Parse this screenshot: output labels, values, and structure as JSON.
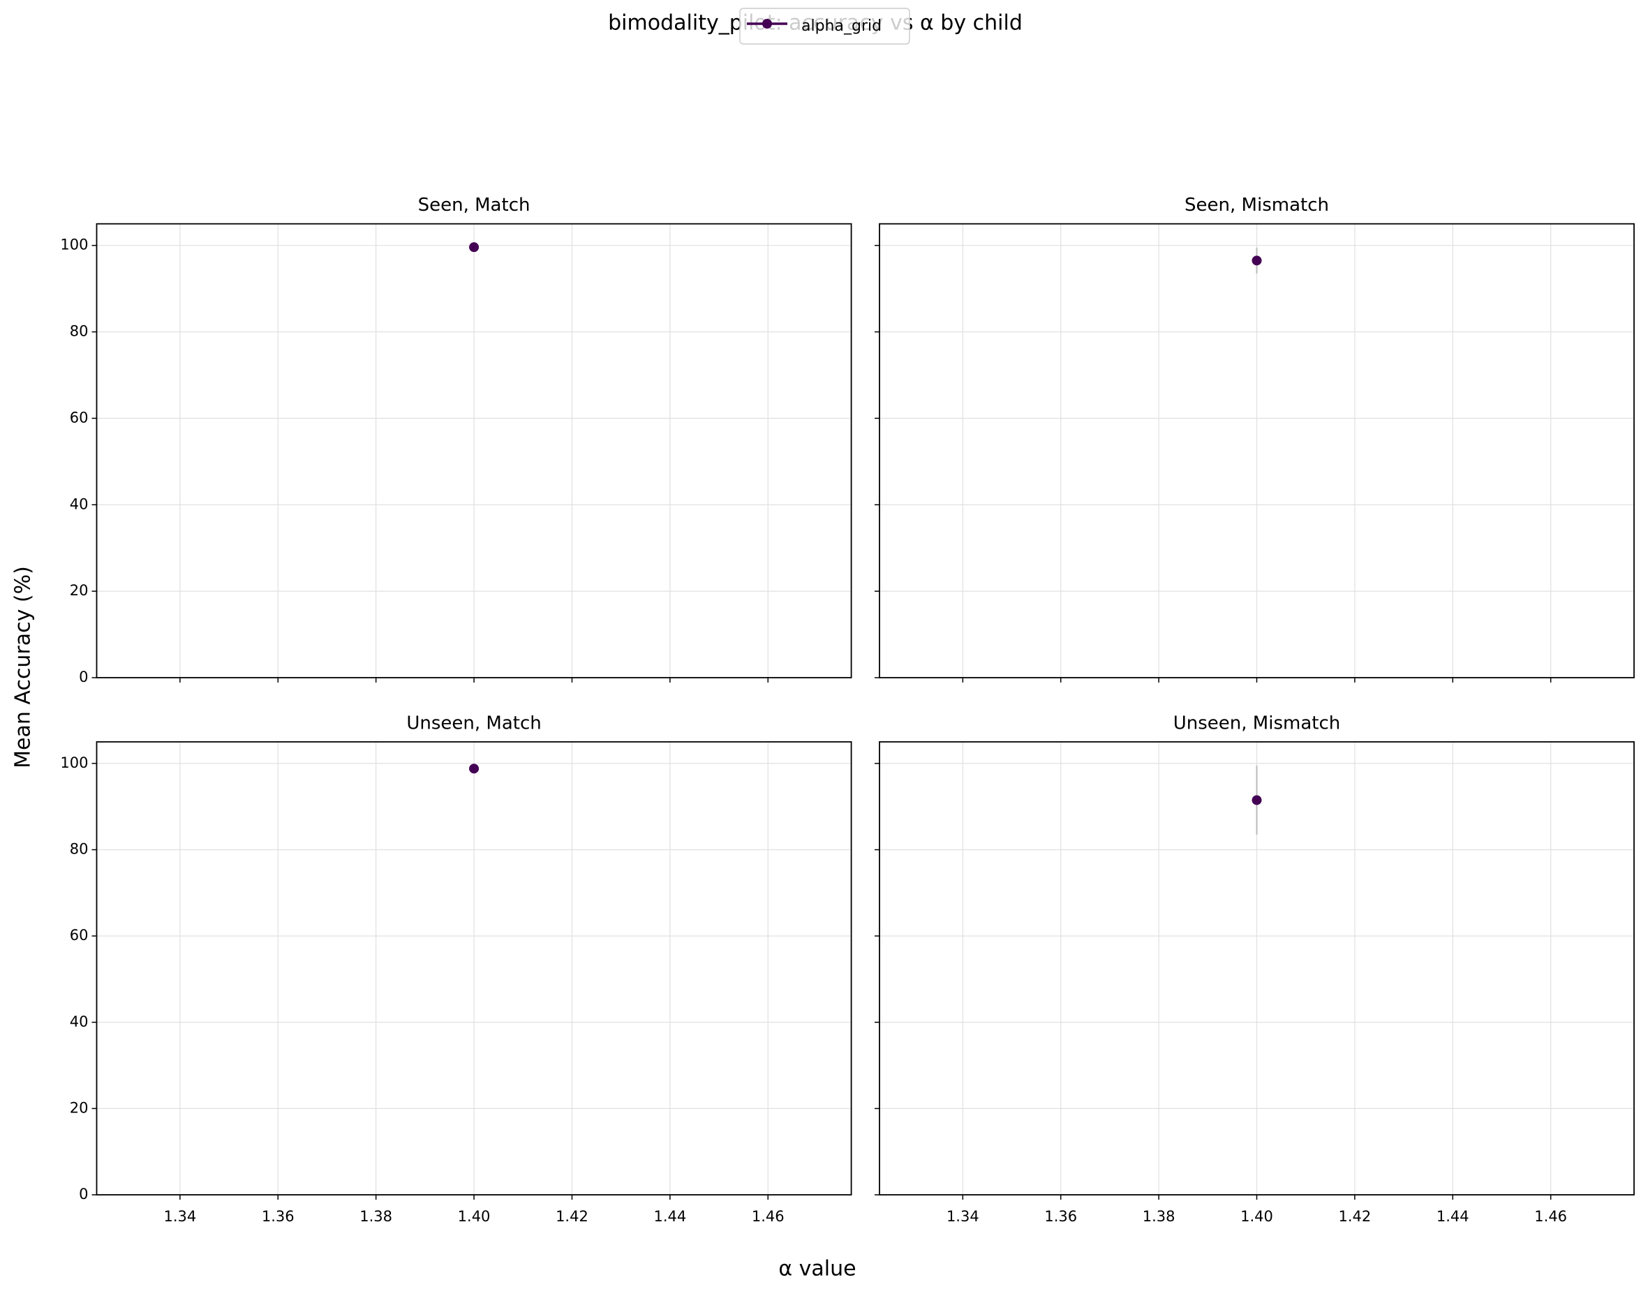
{
  "title": "bimodality_pilot: accuracy vs α by child",
  "x_label": "α value",
  "y_label": "Mean Accuracy (%)",
  "chart_data": [
    {
      "type": "line",
      "title": "Seen, Match",
      "x": [
        1.4
      ],
      "series": [
        {
          "name": "alpha_grid",
          "color": "#440154",
          "values": [
            99.6
          ],
          "errors": [
            0.5
          ]
        }
      ],
      "xlim": [
        1.323,
        1.477
      ],
      "ylim": [
        0,
        105
      ],
      "xticks": [
        {
          "value": 1.34,
          "label": "1.34"
        },
        {
          "value": 1.36,
          "label": "1.36"
        },
        {
          "value": 1.38,
          "label": "1.38"
        },
        {
          "value": 1.4,
          "label": "1.40"
        },
        {
          "value": 1.42,
          "label": "1.42"
        },
        {
          "value": 1.44,
          "label": "1.44"
        },
        {
          "value": 1.46,
          "label": "1.46"
        }
      ],
      "yticks": [
        0,
        20,
        40,
        60,
        80,
        100
      ],
      "grid": true
    },
    {
      "type": "line",
      "title": "Seen, Mismatch",
      "x": [
        1.4
      ],
      "series": [
        {
          "name": "alpha_grid",
          "color": "#440154",
          "values": [
            96.5
          ],
          "errors": [
            3
          ]
        }
      ],
      "xlim": [
        1.323,
        1.477
      ],
      "ylim": [
        0,
        105
      ],
      "xticks": [
        {
          "value": 1.34,
          "label": "1.34"
        },
        {
          "value": 1.36,
          "label": "1.36"
        },
        {
          "value": 1.38,
          "label": "1.38"
        },
        {
          "value": 1.4,
          "label": "1.40"
        },
        {
          "value": 1.42,
          "label": "1.42"
        },
        {
          "value": 1.44,
          "label": "1.44"
        },
        {
          "value": 1.46,
          "label": "1.46"
        }
      ],
      "yticks": [
        0,
        20,
        40,
        60,
        80,
        100
      ],
      "grid": true
    },
    {
      "type": "line",
      "title": "Unseen, Match",
      "x": [
        1.4
      ],
      "series": [
        {
          "name": "alpha_grid",
          "color": "#440154",
          "values": [
            98.8
          ],
          "errors": [
            1
          ]
        }
      ],
      "xlim": [
        1.323,
        1.477
      ],
      "ylim": [
        0,
        105
      ],
      "xticks": [
        {
          "value": 1.34,
          "label": "1.34"
        },
        {
          "value": 1.36,
          "label": "1.36"
        },
        {
          "value": 1.38,
          "label": "1.38"
        },
        {
          "value": 1.4,
          "label": "1.40"
        },
        {
          "value": 1.42,
          "label": "1.42"
        },
        {
          "value": 1.44,
          "label": "1.44"
        },
        {
          "value": 1.46,
          "label": "1.46"
        }
      ],
      "yticks": [
        0,
        20,
        40,
        60,
        80,
        100
      ],
      "grid": true
    },
    {
      "type": "line",
      "title": "Unseen, Mismatch",
      "x": [
        1.4
      ],
      "series": [
        {
          "name": "alpha_grid",
          "color": "#440154",
          "values": [
            91.5
          ],
          "errors": [
            8
          ]
        }
      ],
      "xlim": [
        1.323,
        1.477
      ],
      "ylim": [
        0,
        105
      ],
      "xticks": [
        {
          "value": 1.34,
          "label": "1.34"
        },
        {
          "value": 1.36,
          "label": "1.36"
        },
        {
          "value": 1.38,
          "label": "1.38"
        },
        {
          "value": 1.4,
          "label": "1.40"
        },
        {
          "value": 1.42,
          "label": "1.42"
        },
        {
          "value": 1.44,
          "label": "1.44"
        },
        {
          "value": 1.46,
          "label": "1.46"
        }
      ],
      "yticks": [
        0,
        20,
        40,
        60,
        80,
        100
      ],
      "grid": true
    }
  ]
}
